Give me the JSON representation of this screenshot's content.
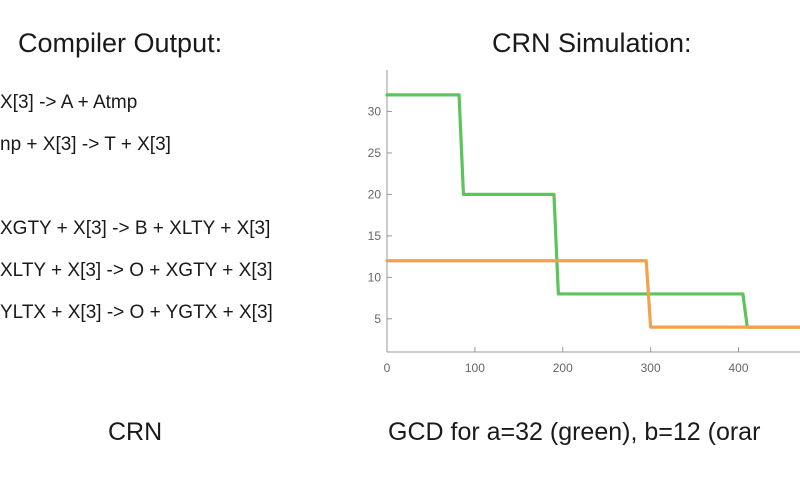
{
  "left_heading": "Compiler Output:",
  "right_heading": "CRN Simulation:",
  "code_lines": [
    "X[3] -> A + Atmp",
    "np + X[3] -> T + X[3]",
    "XGTY + X[3] -> B + XLTY + X[3]",
    "XLTY + X[3] -> O + XGTY + X[3]",
    "YLTX + X[3] -> O + YGTX + X[3]"
  ],
  "left_caption": "CRN",
  "right_caption": "GCD for a=32 (green), b=12 (orar",
  "colors": {
    "green": "#5cc45c",
    "orange": "#f5a04a",
    "axis": "#999999"
  },
  "chart_data": {
    "type": "line",
    "xlim": [
      0,
      470
    ],
    "ylim": [
      1,
      35
    ],
    "x_ticks": [
      0,
      100,
      200,
      300,
      400
    ],
    "y_ticks": [
      5,
      10,
      15,
      20,
      25,
      30
    ],
    "series": [
      {
        "color": "green",
        "x": [
          0,
          82,
          87,
          190,
          195,
          405,
          410,
          470
        ],
        "y": [
          32,
          32,
          20,
          20,
          8,
          8,
          4,
          4
        ]
      },
      {
        "color": "orange",
        "x": [
          0,
          295,
          300,
          470
        ],
        "y": [
          12,
          12,
          4,
          4
        ]
      }
    ]
  }
}
